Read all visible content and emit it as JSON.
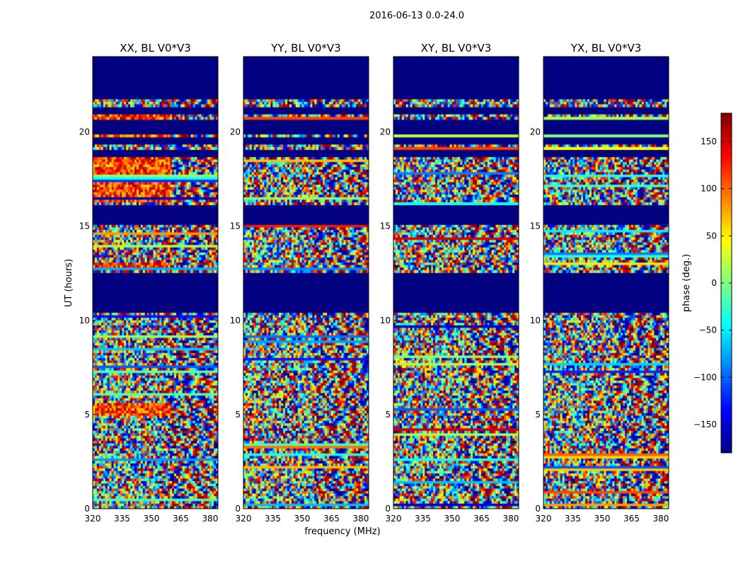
{
  "figure": {
    "suptitle": "2016-06-13 0.0-24.0",
    "xlabel": "frequency (MHz)",
    "ylabel": "UT (hours)"
  },
  "chart_data": {
    "type": "heatmap",
    "x_ticks": [
      320,
      335,
      350,
      365,
      380
    ],
    "xlim": [
      320,
      384
    ],
    "y_ticks": [
      0,
      5,
      10,
      15,
      20
    ],
    "ylim": [
      0,
      24
    ],
    "panels": [
      {
        "title": "XX, BL V0*V3",
        "key": "xx"
      },
      {
        "title": "YY, BL V0*V3",
        "key": "yy"
      },
      {
        "title": "XY, BL V0*V3",
        "key": "xy"
      },
      {
        "title": "YX, BL V0*V3",
        "key": "yx"
      }
    ],
    "no_data_hours": [
      [
        0.0,
        0.05
      ],
      [
        10.4,
        12.5
      ],
      [
        15.05,
        16.2
      ],
      [
        18.7,
        19.1
      ],
      [
        19.3,
        19.7
      ],
      [
        19.9,
        20.7
      ],
      [
        21.0,
        21.3
      ],
      [
        21.75,
        24.0
      ]
    ],
    "warm_bias_hours": {
      "xx": [
        [
          16.3,
          18.7
        ],
        [
          12.7,
          13.1
        ],
        [
          19.7,
          19.9
        ],
        [
          4.9,
          5.6
        ],
        [
          20.7,
          21.0
        ]
      ],
      "yy": [],
      "xy": [],
      "yx": []
    },
    "colorbar": {
      "label": "phase (deg.)",
      "range": [
        -180,
        180
      ],
      "ticks": [
        150,
        100,
        50,
        0,
        -50,
        -100,
        -150
      ],
      "tick_labels": [
        "150",
        "100",
        "50",
        "0",
        "−50",
        "−100",
        "−150"
      ],
      "colormap": "jet"
    }
  }
}
